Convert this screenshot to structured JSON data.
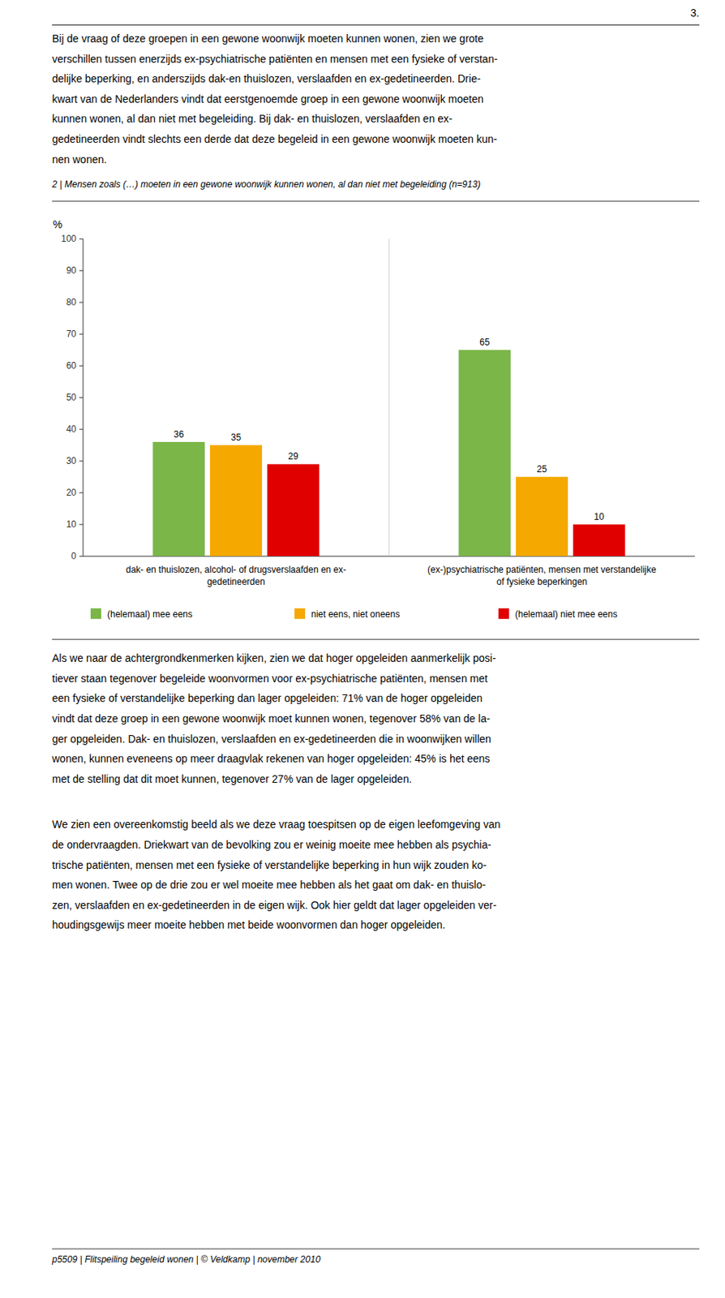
{
  "page_number": "3.",
  "top_text_lines": [
    "Bij de vraag of deze groepen in een gewone woonwijk moeten kunnen wonen, zien we grote",
    "verschillen tussen enerzijds ex-psychiatrische patiënten en mensen met een fysieke of verstan-",
    "delijke beperking, en anderszijds dak-en thuislozen, verslaafden en ex-gedetineerden. Drie-",
    "kwart van de Nederlanders vindt dat eerstgenoemde groep in een gewone woonwijk moeten",
    "kunnen wonen, al dan niet met begeleiding. Bij dak- en thuislozen, verslaafden en ex-",
    "gedetineerden vindt slechts een derde dat deze begeleid in een gewone woonwijk moeten kun-",
    "nen wonen."
  ],
  "bottom_text1_lines": [
    "Als we naar de achtergrondkenmerken kijken, zien we dat hoger opgeleiden aanmerkelijk posi-",
    "tiever staan tegenover begeleide woonvormen voor ex-psychiatrische patiënten, mensen met",
    "een fysieke of verstandelijke beperking dan lager opgeleiden: 71% van de hoger opgeleiden",
    "vindt dat deze groep in een gewone woonwijk moet kunnen wonen, tegenover 58% van de la-",
    "ger opgeleiden. Dak- en thuislozen, verslaafden en ex-gedetineerden die in woonwijken willen",
    "wonen, kunnen eveneens op meer draagvlak rekenen van hoger opgeleiden: 45% is het eens",
    "met de stelling dat dit moet kunnen, tegenover 27% van de lager opgeleiden."
  ],
  "bottom_text2_lines": [
    "We zien een overeenkomstig beeld als we deze vraag toespitsen op de eigen leefomgeving van",
    "de ondervraagden. Driekwart van de bevolking zou er weinig moeite mee hebben als psychia-",
    "trische patiënten, mensen met een fysieke of verstandelijke beperking in hun wijk zouden ko-",
    "men wonen. Twee op de drie zou er wel moeite mee hebben als het gaat om dak- en thuislo-",
    "zen, verslaafden en ex-gedetineerden in de eigen wijk. Ook hier geldt dat lager opgeleiden ver-",
    "houdingsgewijs meer moeite hebben met beide woonvormen dan hoger opgeleiden."
  ],
  "footer_text": "p5509 | Flitspeiling begeleid wonen | © Veldkamp | november 2010",
  "chart_data": {
    "type": "bar",
    "title": "2 | Mensen zoals (…) moeten in een gewone woonwijk kunnen wonen, al dan niet met begeleiding (n=913)",
    "y_label": "%",
    "categories": [
      "dak- en thuislozen, alcohol- of drugsverslaafden en ex-\ngedetineerden",
      "(ex-)psychiatrische patiënten, mensen met verstandelijke\nof fysieke beperkingen"
    ],
    "series": [
      {
        "name": "(helemaal) mee eens",
        "color": "#7ab648",
        "values": [
          36,
          65
        ]
      },
      {
        "name": "niet eens, niet oneens",
        "color": "#f5a800",
        "values": [
          35,
          25
        ]
      },
      {
        "name": "(helemaal) niet mee eens",
        "color": "#e00000",
        "values": [
          29,
          10
        ]
      }
    ],
    "ylim": [
      0,
      100
    ],
    "yticks": [
      0,
      10,
      20,
      30,
      40,
      50,
      60,
      70,
      80,
      90,
      100
    ],
    "grid": false,
    "legend": "bottom",
    "data_labels": true
  }
}
